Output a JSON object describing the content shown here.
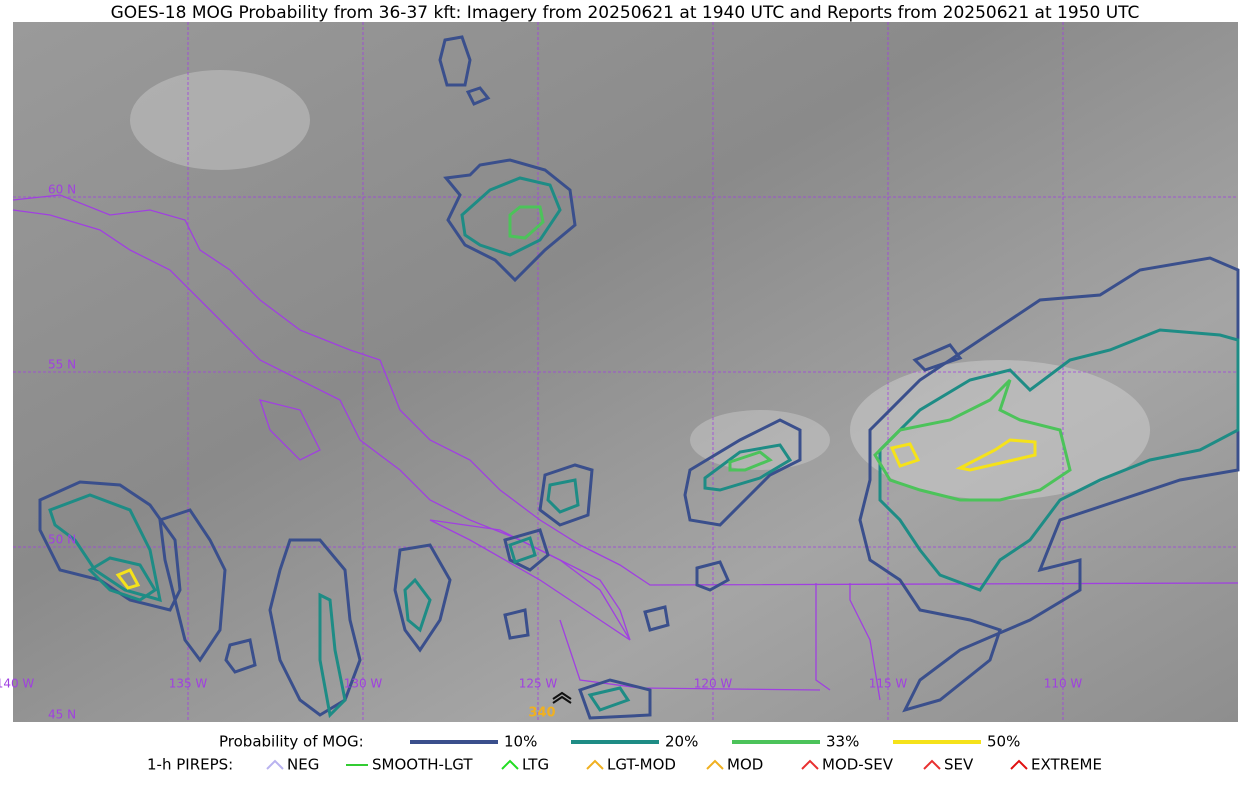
{
  "header": {
    "title": "GOES-18 MOG Probability from 36-37 kft: Imagery from 20250621 at 1940 UTC and Reports from 20250621 at 1950 UTC"
  },
  "map": {
    "longitude_labels": [
      "140 W",
      "135 W",
      "130 W",
      "125 W",
      "120 W",
      "115 W",
      "110 W"
    ],
    "latitude_labels": [
      "60 N",
      "55 N",
      "50 N",
      "45 N"
    ],
    "report_label": "340"
  },
  "legend": {
    "probability": {
      "title": "Probability of MOG:",
      "items": [
        {
          "label": "10%",
          "color": "#3a4f8c"
        },
        {
          "label": "20%",
          "color": "#1e8c85"
        },
        {
          "label": "33%",
          "color": "#4cc35a"
        },
        {
          "label": "50%",
          "color": "#f5e21a"
        }
      ]
    },
    "pireps": {
      "title": "1-h PIREPS:",
      "items": [
        {
          "label": "NEG",
          "color": "#b9b3f0"
        },
        {
          "label": "SMOOTH-LGT",
          "color": "#33cc33"
        },
        {
          "label": "LTG",
          "color": "#22dd22"
        },
        {
          "label": "LGT-MOD",
          "color": "#f0b020"
        },
        {
          "label": "MOD",
          "color": "#f0b020"
        },
        {
          "label": "MOD-SEV",
          "color": "#e83030"
        },
        {
          "label": "SEV",
          "color": "#e83030"
        },
        {
          "label": "EXTREME",
          "color": "#e01010"
        }
      ]
    }
  }
}
